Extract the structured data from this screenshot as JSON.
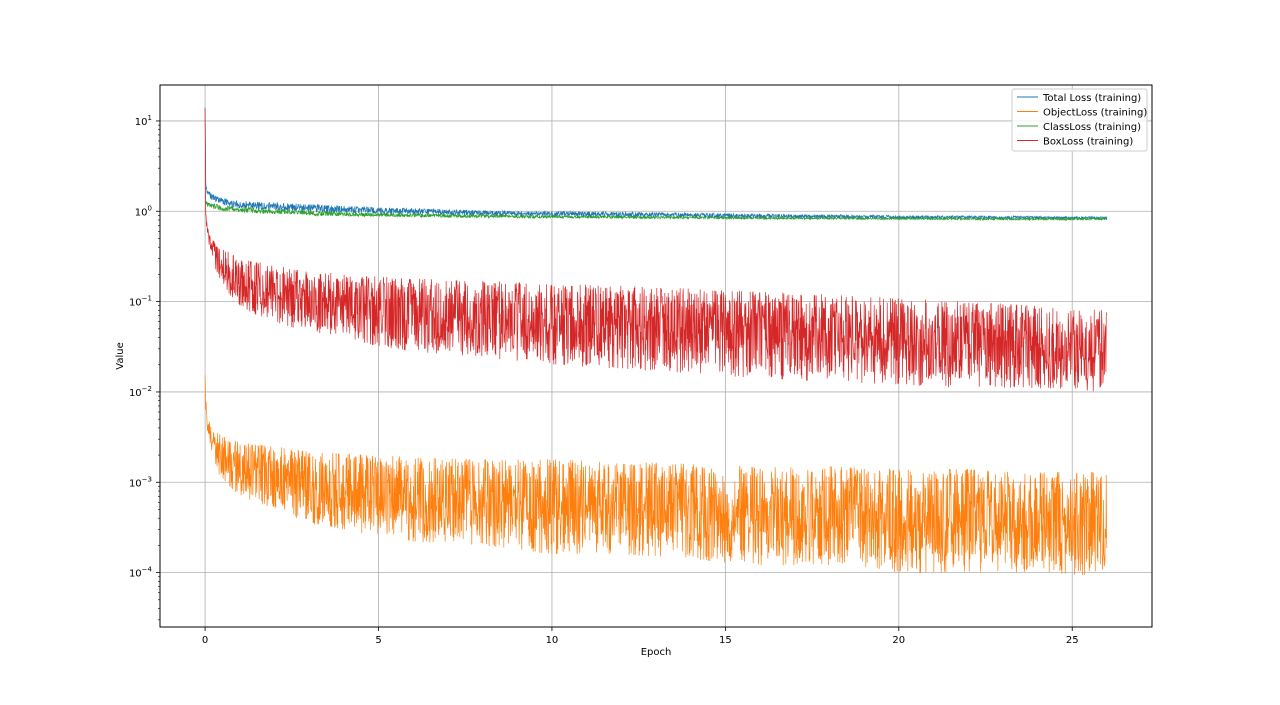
{
  "chart_data": {
    "type": "line",
    "title": "",
    "xlabel": "Epoch",
    "ylabel": "Value",
    "xlim": [
      -1.3,
      27.3
    ],
    "ylim": [
      2.5e-05,
      25
    ],
    "yscale": "log",
    "grid": true,
    "legend_position": "top-right",
    "x_ticks": [
      0,
      5,
      10,
      15,
      20,
      25
    ],
    "x_tick_labels": [
      "0",
      "5",
      "10",
      "15",
      "20",
      "25"
    ],
    "y_ticks": [
      0.0001,
      0.001,
      0.01,
      0.1,
      1,
      10
    ],
    "y_tick_bases": [
      "10",
      "10",
      "10",
      "10",
      "10",
      "10"
    ],
    "y_tick_exponents": [
      "−4",
      "−3",
      "−2",
      "−1",
      "0",
      "1"
    ],
    "series": [
      {
        "name": "Total Loss (training)",
        "color": "#1f77b4",
        "x": [
          0,
          0.02,
          0.05,
          0.1,
          0.3,
          0.5,
          1,
          2,
          3,
          4,
          5,
          6,
          7,
          8,
          9,
          10,
          12,
          14,
          16,
          18,
          20,
          22,
          24,
          26
        ],
        "low": [
          14,
          1.8,
          1.6,
          1.4,
          1.25,
          1.15,
          1.08,
          1.02,
          0.98,
          0.95,
          0.93,
          0.92,
          0.91,
          0.9,
          0.89,
          0.88,
          0.86,
          0.85,
          0.84,
          0.84,
          0.83,
          0.83,
          0.82,
          0.82
        ],
        "high": [
          14,
          2.2,
          1.9,
          1.7,
          1.5,
          1.4,
          1.3,
          1.25,
          1.2,
          1.15,
          1.1,
          1.08,
          1.05,
          1.02,
          1.0,
          1.0,
          0.98,
          0.96,
          0.93,
          0.92,
          0.9,
          0.89,
          0.88,
          0.87
        ]
      },
      {
        "name": "ObjectLoss (training)",
        "color": "#ff7f0e",
        "x": [
          0,
          0.02,
          0.05,
          0.1,
          0.2,
          0.4,
          0.7,
          1,
          1.5,
          2,
          3,
          4,
          5,
          6,
          8,
          10,
          12,
          14,
          16,
          18,
          20,
          22,
          24,
          26
        ],
        "low": [
          0.015,
          0.006,
          0.004,
          0.003,
          0.002,
          0.0012,
          0.0009,
          0.0007,
          0.0006,
          0.0005,
          0.00035,
          0.0003,
          0.00025,
          0.00022,
          0.0002,
          0.00016,
          0.00016,
          0.00014,
          0.00012,
          0.00012,
          0.0001,
          0.0001,
          0.0001,
          9e-05
        ],
        "high": [
          0.018,
          0.009,
          0.006,
          0.005,
          0.004,
          0.0035,
          0.003,
          0.0028,
          0.0026,
          0.0025,
          0.0022,
          0.0021,
          0.002,
          0.0019,
          0.0018,
          0.0018,
          0.0017,
          0.0016,
          0.0015,
          0.0015,
          0.0014,
          0.0014,
          0.0013,
          0.0013
        ]
      },
      {
        "name": "ClassLoss (training)",
        "color": "#2ca02c",
        "x": [
          0,
          0.02,
          0.05,
          0.1,
          0.3,
          0.5,
          1,
          2,
          3,
          4,
          5,
          7,
          10,
          13,
          16,
          20,
          23,
          26
        ],
        "low": [
          1.3,
          1.2,
          1.15,
          1.1,
          1.05,
          1.0,
          0.97,
          0.93,
          0.9,
          0.88,
          0.87,
          0.85,
          0.84,
          0.83,
          0.82,
          0.81,
          0.8,
          0.8
        ],
        "high": [
          1.3,
          1.3,
          1.28,
          1.25,
          1.2,
          1.16,
          1.12,
          1.06,
          1.02,
          0.98,
          0.96,
          0.93,
          0.9,
          0.88,
          0.86,
          0.85,
          0.84,
          0.84
        ]
      },
      {
        "name": "BoxLoss (training)",
        "color": "#d62728",
        "x": [
          0,
          0.02,
          0.05,
          0.1,
          0.2,
          0.4,
          0.7,
          1,
          1.5,
          2,
          3,
          4,
          5,
          6,
          8,
          10,
          12,
          14,
          16,
          18,
          20,
          22,
          24,
          26
        ],
        "low": [
          14,
          0.8,
          0.6,
          0.45,
          0.3,
          0.18,
          0.12,
          0.09,
          0.07,
          0.06,
          0.045,
          0.038,
          0.032,
          0.028,
          0.024,
          0.02,
          0.018,
          0.016,
          0.014,
          0.013,
          0.012,
          0.011,
          0.011,
          0.01
        ],
        "high": [
          14,
          1.0,
          0.8,
          0.6,
          0.5,
          0.4,
          0.35,
          0.3,
          0.28,
          0.25,
          0.22,
          0.2,
          0.19,
          0.18,
          0.17,
          0.16,
          0.15,
          0.14,
          0.13,
          0.12,
          0.11,
          0.1,
          0.09,
          0.08
        ]
      }
    ]
  }
}
